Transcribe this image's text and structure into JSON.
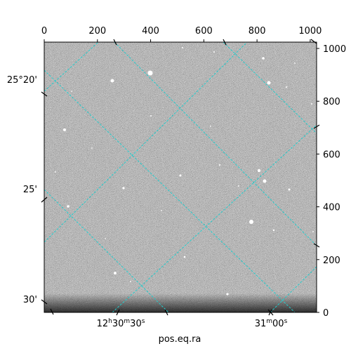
{
  "figure": {
    "x_label": "pos.eq.ra",
    "top_ticks": [
      "0",
      "200",
      "400",
      "600",
      "800",
      "1000"
    ],
    "right_ticks": [
      "0",
      "200",
      "400",
      "600",
      "800",
      "1000"
    ],
    "left_ticks": [
      "25°20'",
      "25'",
      "30'"
    ],
    "bottom_ticks": [
      {
        "h": "12",
        "hs": "h",
        "m": "30",
        "ms": "m",
        "s": "30",
        "ss": "s"
      },
      {
        "m": "31",
        "ms": "m",
        "s": "00",
        "ss": "s"
      }
    ],
    "colors": {
      "grid": "#22cccc",
      "frame": "#000000",
      "background_sky": "#7a7a7a"
    }
  }
}
